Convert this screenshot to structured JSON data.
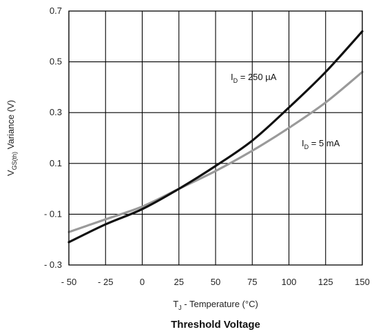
{
  "chart_data": {
    "type": "line",
    "title": "Threshold Voltage",
    "ylabel": {
      "main": "V",
      "sub": "GS(th)",
      "rest": " Variance (V)"
    },
    "xlabel": {
      "main": "T",
      "sub": "J",
      "rest": " - Temperature (°C)"
    },
    "xlim": [
      -50,
      150
    ],
    "ylim": [
      -0.3,
      0.7
    ],
    "x_ticks": [
      -50,
      -25,
      0,
      25,
      50,
      75,
      100,
      125,
      150
    ],
    "x_tick_labels": [
      "- 50",
      "- 25",
      "0",
      "25",
      "50",
      "75",
      "100",
      "125",
      "150"
    ],
    "y_ticks": [
      -0.3,
      -0.1,
      0.1,
      0.3,
      0.5,
      0.7
    ],
    "y_tick_labels": [
      "- 0.3",
      "- 0.1",
      "0.1",
      "0.3",
      "0.5",
      "0.7"
    ],
    "grid": true,
    "series": [
      {
        "name": "250 µA",
        "label_prefix": "I",
        "label_sub": "D",
        "label_rest": " = 250 µA",
        "color": "#111111",
        "x": [
          -50,
          -25,
          0,
          25,
          50,
          75,
          100,
          125,
          150
        ],
        "y": [
          -0.21,
          -0.14,
          -0.08,
          0.0,
          0.09,
          0.19,
          0.32,
          0.46,
          0.62
        ]
      },
      {
        "name": "5 mA",
        "label_prefix": "I",
        "label_sub": "D",
        "label_rest": " = 5 mA",
        "color": "#9a9a9a",
        "x": [
          -50,
          -25,
          0,
          25,
          50,
          75,
          100,
          125,
          150
        ],
        "y": [
          -0.17,
          -0.12,
          -0.07,
          0.0,
          0.07,
          0.15,
          0.24,
          0.34,
          0.46
        ]
      }
    ]
  }
}
